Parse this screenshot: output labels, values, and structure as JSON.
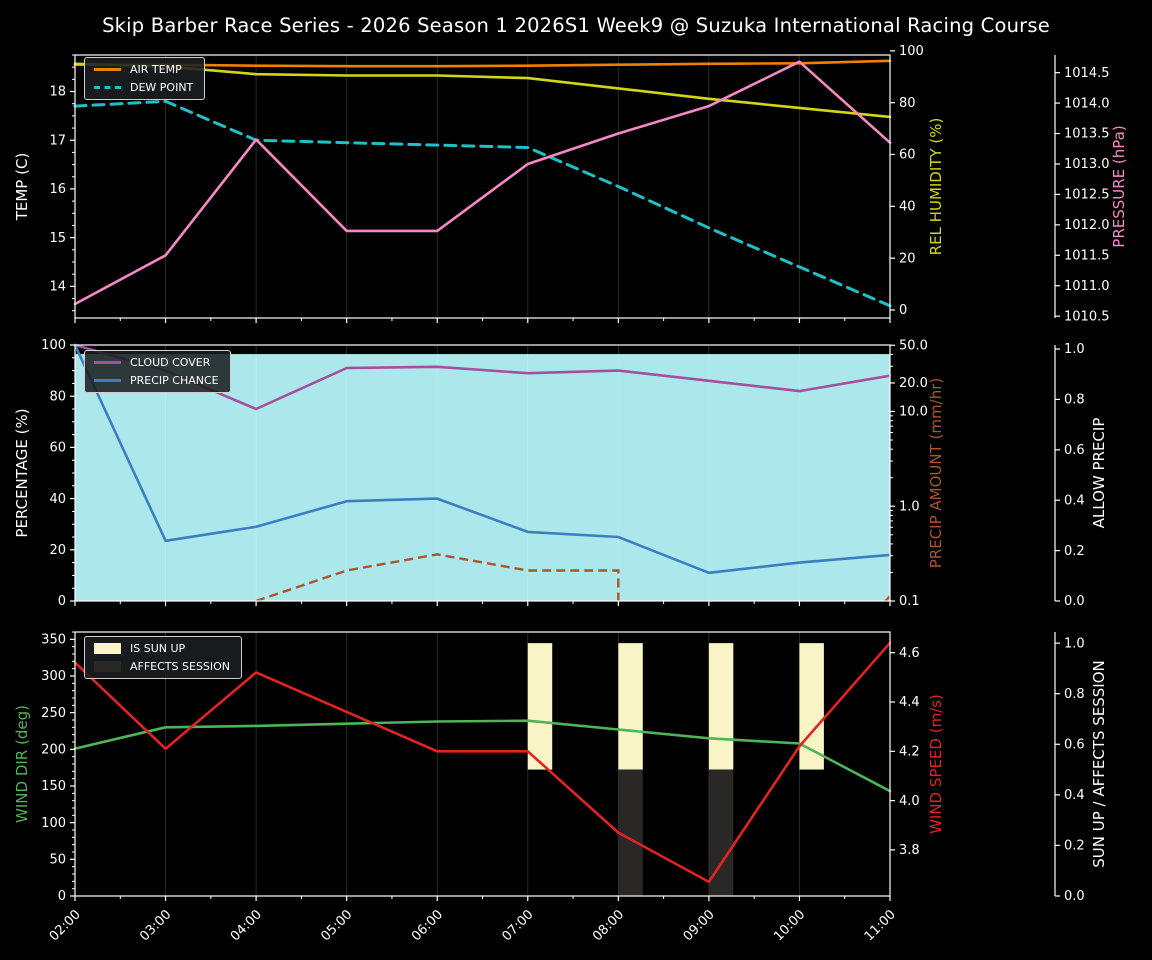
{
  "title": "Skip Barber Race Series - 2026 Season 1 2026S1 Week9 @ Suzuka International Racing Course",
  "x_axis": {
    "labels": [
      "02:00",
      "03:00",
      "04:00",
      "05:00",
      "06:00",
      "07:00",
      "08:00",
      "09:00",
      "10:00",
      "11:00"
    ],
    "hours": [
      2,
      3,
      4,
      5,
      6,
      7,
      8,
      9,
      10,
      11
    ]
  },
  "colors": {
    "air_temp": "#f08000",
    "dew_point": "#1dc2c9",
    "rel_humidity": "#d3d613",
    "pressure": "#f688c5",
    "cloud_cover": "#a3509f",
    "precip_chance": "#3d7ec2",
    "precip_amount": "#aa552c",
    "allow_precip_fill": "#ace8eb",
    "wind_dir": "#4eb457",
    "wind_speed": "#e32222",
    "sun_up": "#f8f4c6",
    "affects_session": "#2a2727",
    "grid": "rgba(255,255,255,0.16)",
    "frame": "#ffffff",
    "text": "#ffffff"
  },
  "legends": {
    "temperature": {
      "items": [
        {
          "label": "AIR TEMP",
          "swatch": "air_temp",
          "style": "line"
        },
        {
          "label": "DEW POINT",
          "swatch": "dew_point",
          "style": "dashed"
        }
      ]
    },
    "precipitation": {
      "items": [
        {
          "label": "CLOUD COVER",
          "swatch": "cloud_cover",
          "style": "line"
        },
        {
          "label": "PRECIP CHANCE",
          "swatch": "precip_chance",
          "style": "line"
        }
      ]
    },
    "wind": {
      "items": [
        {
          "label": "IS SUN UP",
          "swatch": "sun_up",
          "style": "patch"
        },
        {
          "label": "AFFECTS SESSION",
          "swatch": "affects_session",
          "style": "patch"
        }
      ]
    }
  },
  "chart_data": [
    {
      "type": "line",
      "panel": "temperature",
      "axes": {
        "left": {
          "label": "TEMP (C)",
          "ticks": [
            14,
            15,
            16,
            17,
            18
          ],
          "tick_labels": [
            "14",
            "15",
            "16",
            "17",
            "18"
          ],
          "range": [
            13.35,
            18.75
          ],
          "minor_step": 0.25,
          "color": "text"
        },
        "right_inner": {
          "label": "REL HUMIDITY (%)",
          "ticks": [
            0,
            20,
            40,
            60,
            80,
            100
          ],
          "tick_labels": [
            "0",
            "20",
            "40",
            "60",
            "80",
            "100"
          ],
          "range": [
            -3.1,
            98.4
          ],
          "color": "rel_humidity"
        },
        "right_outer": {
          "label": "PRESSURE (hPa)",
          "ticks": [
            1010.5,
            1011.0,
            1011.5,
            1012.0,
            1012.5,
            1013.0,
            1013.5,
            1014.0,
            1014.5
          ],
          "tick_labels": [
            "1010.5",
            "1011.0",
            "1011.5",
            "1012.0",
            "1012.5",
            "1013.0",
            "1013.5",
            "1014.0",
            "1014.5"
          ],
          "range": [
            1010.47,
            1014.79
          ],
          "color": "pressure"
        }
      },
      "series": [
        {
          "name": "AIR TEMP",
          "key": "air_temp",
          "axis": "left",
          "values": [
            18.55,
            18.55,
            18.53,
            18.52,
            18.52,
            18.53,
            18.55,
            18.57,
            18.58,
            18.63
          ]
        },
        {
          "name": "DEW POINT",
          "key": "dew_point",
          "axis": "left",
          "dashed": true,
          "values": [
            17.7,
            17.8,
            17.0,
            16.95,
            16.9,
            16.85,
            16.05,
            15.2,
            14.4,
            13.6
          ]
        },
        {
          "name": "REL HUMIDITY",
          "key": "rel_humidity",
          "axis": "right_inner",
          "values": [
            95,
            94,
            91,
            90.5,
            90.5,
            89.5,
            85.5,
            81.5,
            78,
            74.5
          ]
        },
        {
          "name": "PRESSURE",
          "key": "pressure",
          "axis": "right_outer",
          "values": [
            1010.7,
            1011.5,
            1013.4,
            1011.9,
            1011.9,
            1013.0,
            1013.5,
            1013.95,
            1014.68,
            1013.35
          ]
        }
      ]
    },
    {
      "type": "line",
      "panel": "precipitation",
      "axes": {
        "left": {
          "label": "PERCENTAGE (%)",
          "ticks": [
            0,
            20,
            40,
            60,
            80,
            100
          ],
          "tick_labels": [
            "0",
            "20",
            "40",
            "60",
            "80",
            "100"
          ],
          "range": [
            0,
            100
          ],
          "minor_step": 5,
          "color": "text"
        },
        "right_inner": {
          "label": "PRECIP AMOUNT (mm/hr)",
          "scale": "log",
          "ticks": [
            50,
            20,
            10,
            1,
            0.1
          ],
          "tick_labels": [
            "50.0",
            "20.0",
            "10.0",
            "1.0",
            "0.1"
          ],
          "minor_ticks": [
            0.2,
            0.3,
            0.4,
            0.5,
            0.6,
            0.7,
            0.8,
            0.9,
            2,
            3,
            4,
            5,
            6,
            7,
            8,
            9,
            30,
            40
          ],
          "range": [
            0.1,
            50.3
          ],
          "color": "precip_amount"
        },
        "right_outer": {
          "label": "ALLOW PRECIP",
          "ticks": [
            0,
            0.2,
            0.4,
            0.6,
            0.8,
            1.0
          ],
          "tick_labels": [
            "0.0",
            "0.2",
            "0.4",
            "0.6",
            "0.8",
            "1.0"
          ],
          "range": [
            0,
            1.016
          ],
          "color": "text"
        }
      },
      "series": [
        {
          "name": "CLOUD COVER",
          "key": "cloud_cover",
          "axis": "left",
          "values": [
            100,
            90,
            75,
            91,
            91.5,
            89,
            90,
            86,
            82,
            88
          ]
        },
        {
          "name": "PRECIP CHANCE",
          "key": "precip_chance",
          "axis": "left",
          "values": [
            100,
            23.5,
            29,
            39,
            40,
            27,
            25,
            11,
            15,
            18
          ]
        }
      ],
      "precip_amount_segments": [
        [
          [
            4,
            0.1
          ],
          [
            5,
            0.21
          ],
          [
            6,
            0.31
          ],
          [
            7,
            0.21
          ],
          [
            8,
            0.21
          ],
          [
            8,
            0.1
          ]
        ],
        [
          [
            10.95,
            0.1
          ],
          [
            11,
            0.112
          ]
        ]
      ],
      "allow_precip_level": 0.98
    },
    {
      "type": "line",
      "panel": "wind",
      "axes": {
        "left": {
          "label": "WIND DIR (deg)",
          "ticks": [
            0,
            50,
            100,
            150,
            200,
            250,
            300,
            350
          ],
          "tick_labels": [
            "0",
            "50",
            "100",
            "150",
            "200",
            "250",
            "300",
            "350"
          ],
          "range": [
            0,
            360
          ],
          "minor_step": 10,
          "color": "wind_dir"
        },
        "right_inner": {
          "label": "WIND SPEED (m/s)",
          "ticks": [
            3.8,
            4.0,
            4.2,
            4.4,
            4.6
          ],
          "tick_labels": [
            "3.8",
            "4.0",
            "4.2",
            "4.4",
            "4.6"
          ],
          "range": [
            3.613,
            4.684
          ],
          "color": "wind_speed"
        },
        "right_outer": {
          "label": "SUN UP / AFFECTS SESSION",
          "ticks": [
            0,
            0.2,
            0.4,
            0.6,
            0.8,
            1.0
          ],
          "tick_labels": [
            "0.0",
            "0.2",
            "0.4",
            "0.6",
            "0.8",
            "1.0"
          ],
          "range": [
            0,
            1.044
          ],
          "color": "text"
        }
      },
      "series": [
        {
          "name": "WIND DIR",
          "key": "wind_dir",
          "axis": "left",
          "values": [
            201,
            230,
            232,
            235,
            238,
            239,
            227,
            215,
            208,
            143
          ]
        },
        {
          "name": "WIND SPEED",
          "key": "wind_speed",
          "axis": "right_inner",
          "values": [
            4.56,
            4.21,
            4.52,
            4.36,
            4.2,
            4.2,
            3.87,
            3.67,
            4.22,
            4.64
          ]
        }
      ],
      "bars": {
        "width_hours": 0.27,
        "sun_up": {
          "hours": [
            7,
            8,
            9,
            10
          ],
          "from": 0.5,
          "to": 1.0
        },
        "affects_session": {
          "hours": [
            8,
            9
          ],
          "from": 0.0,
          "to": 0.5
        }
      }
    }
  ]
}
